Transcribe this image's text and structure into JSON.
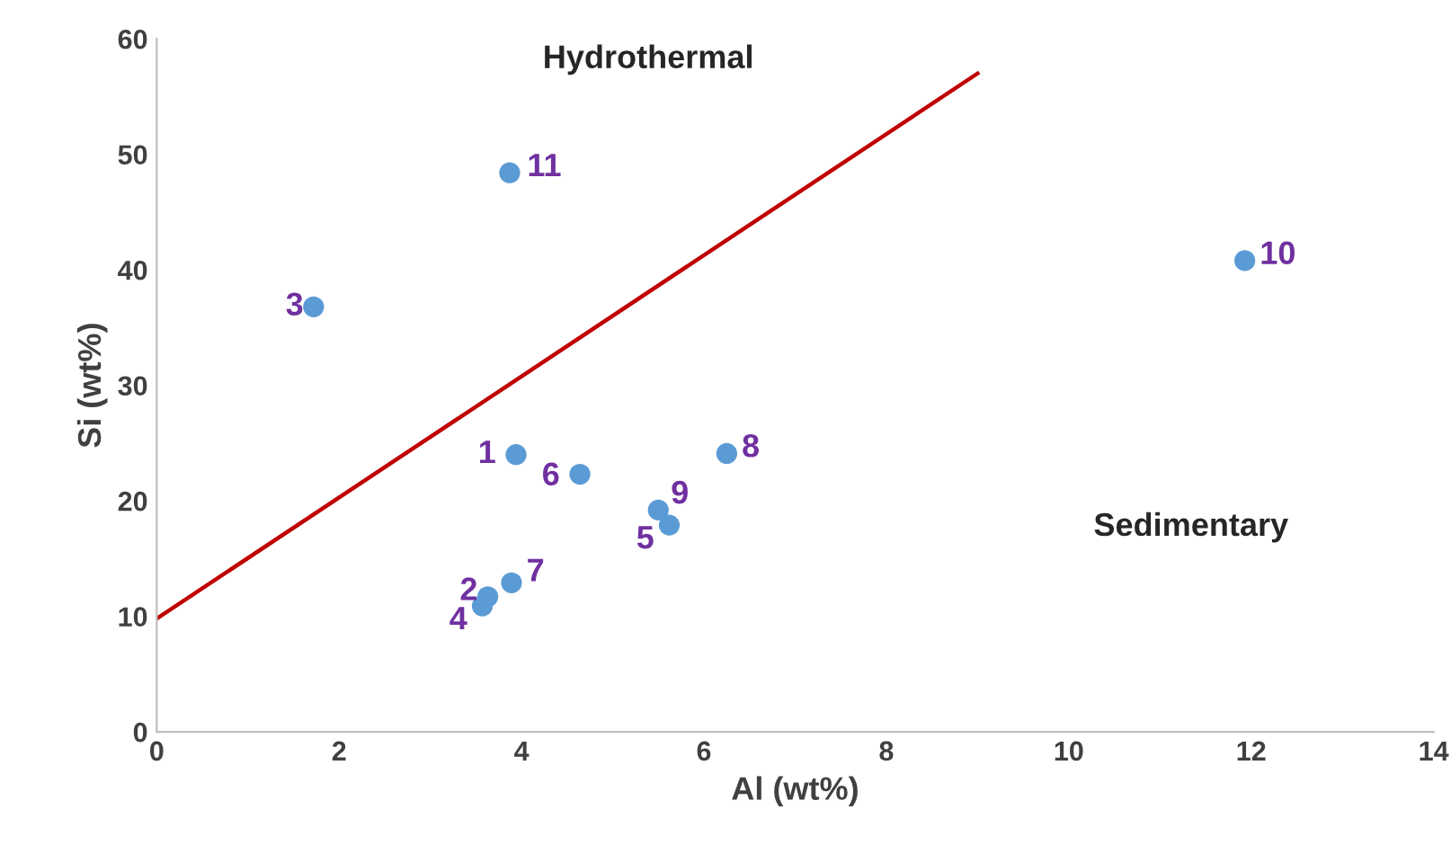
{
  "chart_data": {
    "type": "scatter",
    "xlabel": "Al (wt%)",
    "ylabel": "Si (wt%)",
    "xlim": [
      0,
      14
    ],
    "xticks": [
      0,
      2,
      4,
      6,
      8,
      10,
      12,
      14
    ],
    "ylim": [
      0,
      60
    ],
    "yticks": [
      0,
      10,
      20,
      30,
      40,
      50,
      60
    ],
    "grid": false,
    "legend": false,
    "annotations": [
      "Hydrothermal",
      "Sedimentary",
      {
        "text": "1",
        "x": 3.94,
        "y": 24.0
      },
      {
        "text": "2",
        "x": 3.63,
        "y": 11.7
      },
      {
        "text": "3",
        "x": 1.72,
        "y": 36.8
      },
      {
        "text": "4",
        "x": 3.57,
        "y": 10.9
      },
      {
        "text": "5",
        "x": 5.62,
        "y": 17.9
      },
      {
        "text": "6",
        "x": 4.64,
        "y": 22.3
      },
      {
        "text": "7",
        "x": 3.89,
        "y": 12.9
      },
      {
        "text": "8",
        "x": 6.25,
        "y": 24.1
      },
      {
        "text": "9",
        "x": 5.5,
        "y": 19.2
      },
      {
        "text": "10",
        "x": 11.93,
        "y": 40.8
      },
      {
        "text": "11",
        "x": 3.87,
        "y": 48.4
      }
    ],
    "series": [
      {
        "color": "#5b9bd5",
        "marker": "circle",
        "x": [
          3.94,
          3.63,
          1.72,
          3.57,
          5.62,
          4.64,
          3.89,
          6.25,
          5.5,
          11.93,
          3.87
        ],
        "values": [
          24.0,
          11.7,
          36.8,
          10.9,
          17.9,
          22.3,
          12.9,
          24.1,
          19.2,
          40.8,
          48.4
        ]
      },
      {
        "type": "line",
        "color": "#c00000",
        "x": [
          0,
          9
        ],
        "values": [
          9.8,
          57.0
        ]
      }
    ]
  }
}
